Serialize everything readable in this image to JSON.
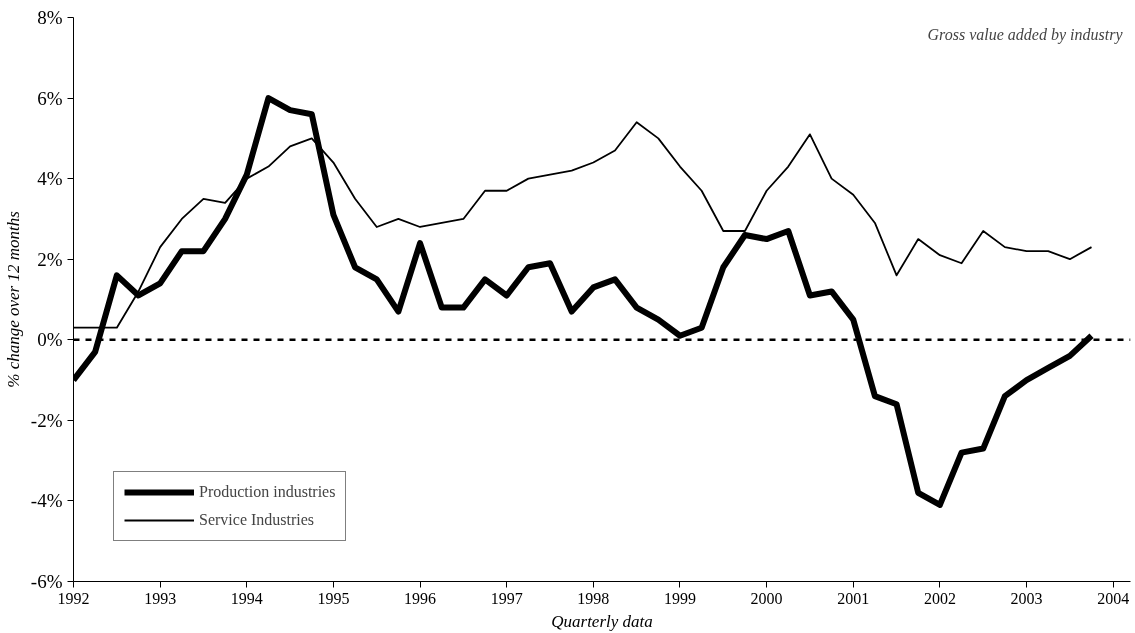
{
  "chart_data": {
    "type": "line",
    "xlabel": "Quarterly data",
    "ylabel": "% change over 12 months",
    "annotations": [
      "Gross value added by industry"
    ],
    "x": [
      1992.0,
      1992.25,
      1992.5,
      1992.75,
      1993.0,
      1993.25,
      1993.5,
      1993.75,
      1994.0,
      1994.25,
      1994.5,
      1994.75,
      1995.0,
      1995.25,
      1995.5,
      1995.75,
      1996.0,
      1996.25,
      1996.5,
      1996.75,
      1997.0,
      1997.25,
      1997.5,
      1997.75,
      1998.0,
      1998.25,
      1998.5,
      1998.75,
      1999.0,
      1999.25,
      1999.5,
      1999.75,
      2000.0,
      2000.25,
      2000.5,
      2000.75,
      2001.0,
      2001.25,
      2001.5,
      2001.75,
      2002.0,
      2002.25,
      2002.5,
      2002.75,
      2003.0,
      2003.25,
      2003.5,
      2003.75
    ],
    "series": [
      {
        "name": "Production industries",
        "color": "#000000",
        "values": [
          -1.0,
          -0.3,
          1.6,
          1.1,
          1.4,
          2.2,
          2.2,
          3.0,
          4.1,
          6.0,
          5.7,
          5.6,
          3.1,
          1.8,
          1.5,
          0.7,
          2.4,
          0.8,
          0.8,
          1.5,
          1.1,
          1.8,
          1.9,
          0.7,
          1.3,
          1.5,
          0.8,
          0.5,
          0.1,
          0.3,
          1.8,
          2.6,
          2.5,
          2.7,
          1.1,
          1.2,
          0.5,
          -1.4,
          -1.6,
          -3.8,
          -4.1,
          -2.8,
          -2.7,
          -1.4,
          -1.0,
          -0.7,
          -0.4,
          0.1
        ]
      },
      {
        "name": "Service Industries",
        "color": "#000000",
        "values": [
          0.3,
          0.3,
          0.3,
          1.2,
          2.3,
          3.0,
          3.5,
          3.4,
          4.0,
          4.3,
          4.8,
          5.0,
          4.4,
          3.5,
          2.8,
          3.0,
          2.8,
          2.9,
          3.0,
          3.7,
          3.7,
          4.0,
          4.1,
          4.2,
          4.4,
          4.7,
          5.4,
          5.0,
          4.3,
          3.7,
          2.7,
          2.7,
          3.7,
          4.3,
          5.1,
          4.0,
          3.6,
          2.9,
          1.6,
          2.5,
          2.1,
          1.9,
          2.7,
          2.3,
          2.2,
          2.2,
          2.0,
          2.3
        ]
      }
    ],
    "xlim": [
      1992,
      2004.2
    ],
    "xticks": [
      1992,
      1993,
      1994,
      1995,
      1996,
      1997,
      1998,
      1999,
      2000,
      2001,
      2002,
      2003,
      2004
    ],
    "ylim": [
      -6,
      8
    ],
    "yticks": [
      {
        "value": -6,
        "label": "-6%"
      },
      {
        "value": -4,
        "label": "-4%"
      },
      {
        "value": -2,
        "label": "-2%"
      },
      {
        "value": 0,
        "label": "0%"
      },
      {
        "value": 2,
        "label": "2%"
      },
      {
        "value": 4,
        "label": "4%"
      },
      {
        "value": 6,
        "label": "6%"
      },
      {
        "value": 8,
        "label": "8%"
      }
    ],
    "ref_lines": [
      {
        "axis": "y",
        "value": 0,
        "color": "#000000",
        "line_style": "dashed"
      }
    ],
    "legend": "bottom left",
    "grid": false,
    "marker": "none",
    "line_style": "solid"
  }
}
